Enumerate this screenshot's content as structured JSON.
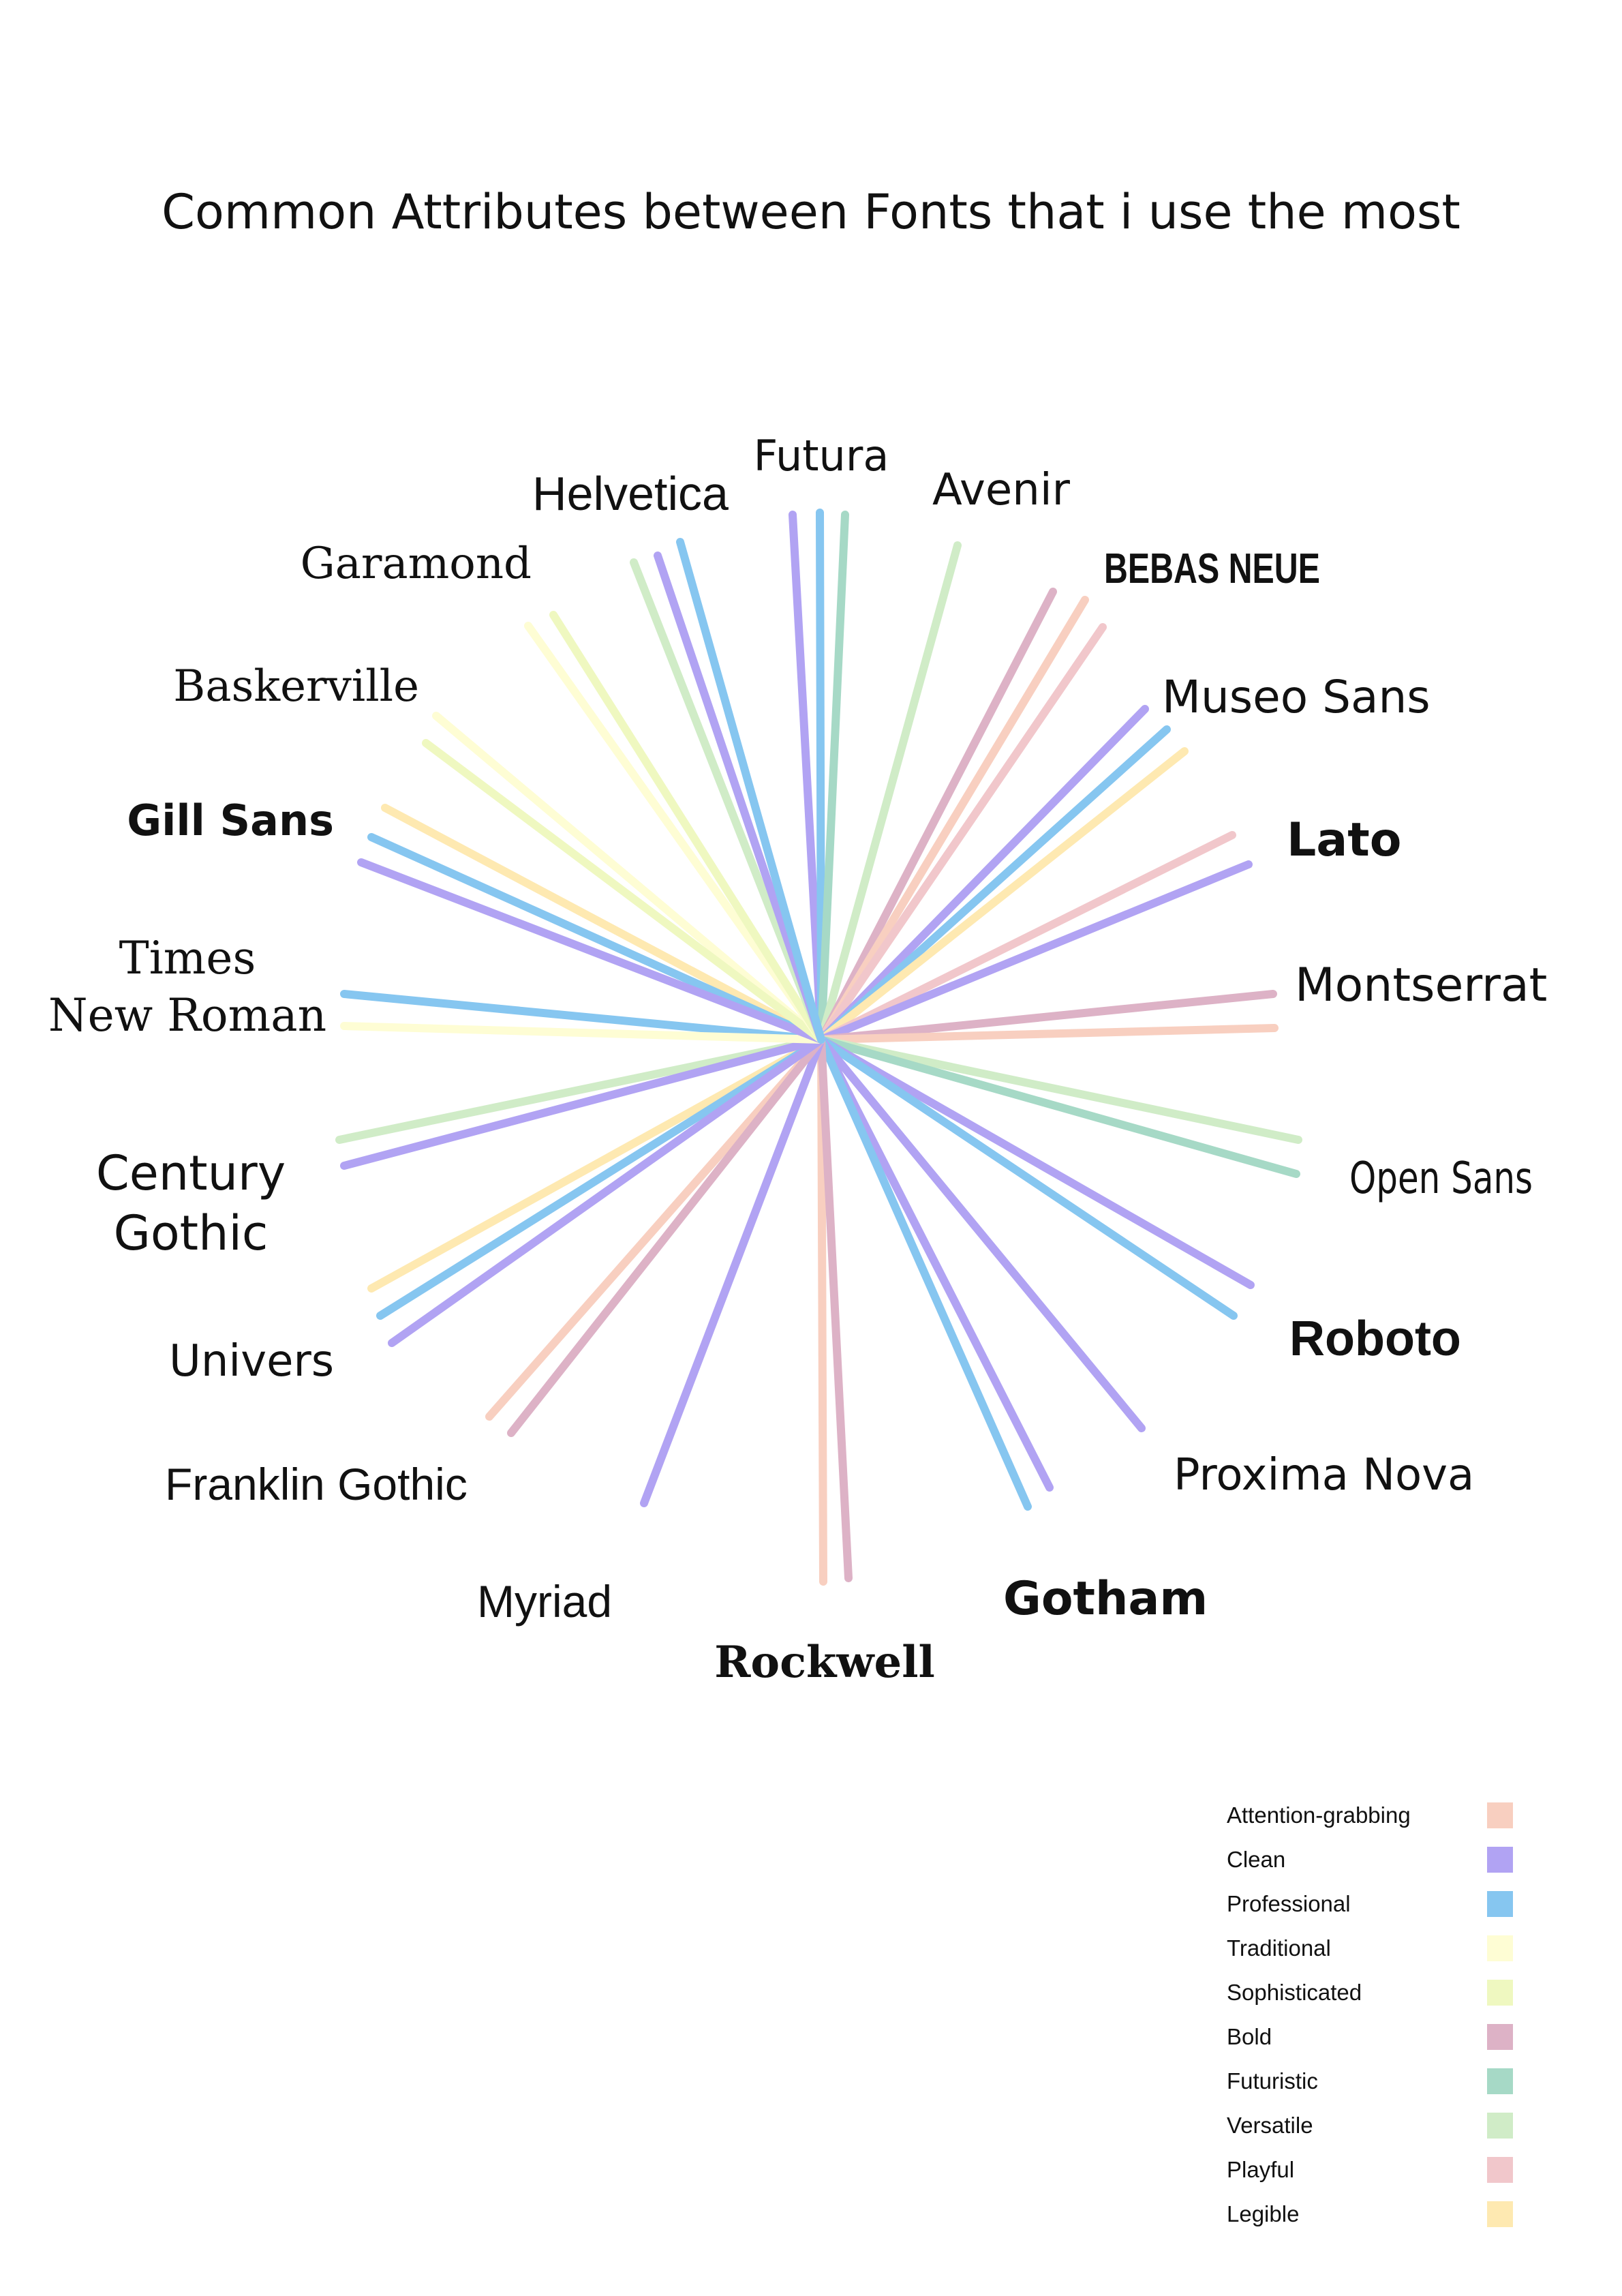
{
  "title": "Common Attributes between Fonts that i use the most",
  "attributes": [
    {
      "key": "attention",
      "label": "Attention-grabbing",
      "color": "#F8CFC0"
    },
    {
      "key": "clean",
      "label": "Clean",
      "color": "#B1A3F3"
    },
    {
      "key": "professional",
      "label": "Professional",
      "color": "#86C6F0"
    },
    {
      "key": "traditional",
      "label": "Traditional",
      "color": "#FEFDD4"
    },
    {
      "key": "sophisticated",
      "label": "Sophisticated",
      "color": "#EFF8C0"
    },
    {
      "key": "bold",
      "label": "Bold",
      "color": "#DDB2C6"
    },
    {
      "key": "futuristic",
      "label": "Futuristic",
      "color": "#A6D9C6"
    },
    {
      "key": "versatile",
      "label": "Versatile",
      "color": "#D0ECC7"
    },
    {
      "key": "playful",
      "label": "Playful",
      "color": "#F1C7CB"
    },
    {
      "key": "legible",
      "label": "Legible",
      "color": "#FEE9B1"
    }
  ],
  "fonts": [
    {
      "name": "Futura",
      "attributes": [
        "clean",
        "professional",
        "futuristic"
      ]
    },
    {
      "name": "Avenir",
      "attributes": [
        "versatile"
      ]
    },
    {
      "name": "BEBAS NEUE",
      "attributes": [
        "bold",
        "attention",
        "playful"
      ]
    },
    {
      "name": "Museo Sans",
      "attributes": [
        "clean",
        "professional",
        "legible"
      ]
    },
    {
      "name": "Lato",
      "attributes": [
        "playful",
        "clean"
      ]
    },
    {
      "name": "Montserrat",
      "attributes": [
        "bold",
        "attention"
      ]
    },
    {
      "name": "Open Sans",
      "attributes": [
        "versatile",
        "futuristic"
      ]
    },
    {
      "name": "Roboto",
      "attributes": [
        "clean",
        "professional"
      ]
    },
    {
      "name": "Proxima Nova",
      "attributes": [
        "clean"
      ]
    },
    {
      "name": "Gotham",
      "attributes": [
        "clean",
        "professional"
      ]
    },
    {
      "name": "Rockwell",
      "attributes": [
        "attention",
        "bold"
      ]
    },
    {
      "name": "Myriad",
      "attributes": [
        "clean"
      ]
    },
    {
      "name": "Franklin Gothic",
      "attributes": [
        "attention",
        "bold"
      ]
    },
    {
      "name": "Univers",
      "attributes": [
        "legible",
        "professional",
        "clean"
      ]
    },
    {
      "name": "Century Gothic",
      "attributes": [
        "versatile",
        "clean"
      ]
    },
    {
      "name": "Times New Roman",
      "attributes": [
        "professional",
        "traditional"
      ]
    },
    {
      "name": "Gill Sans",
      "attributes": [
        "legible",
        "professional",
        "clean"
      ]
    },
    {
      "name": "Baskerville",
      "attributes": [
        "traditional",
        "sophisticated"
      ]
    },
    {
      "name": "Garamond",
      "attributes": [
        "traditional",
        "sophisticated"
      ]
    },
    {
      "name": "Helvetica",
      "attributes": [
        "versatile",
        "clean",
        "professional"
      ]
    }
  ]
}
